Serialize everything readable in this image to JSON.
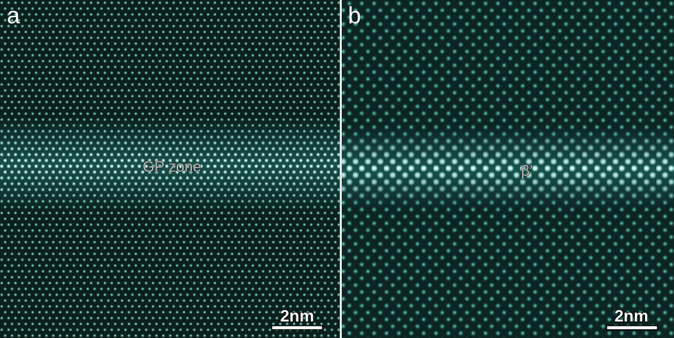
{
  "panels": [
    {
      "label": "a",
      "annotation": "GP zone",
      "scale_bar": "2nm"
    },
    {
      "label": "b",
      "annotation": "β′",
      "scale_bar": "2nm"
    }
  ]
}
